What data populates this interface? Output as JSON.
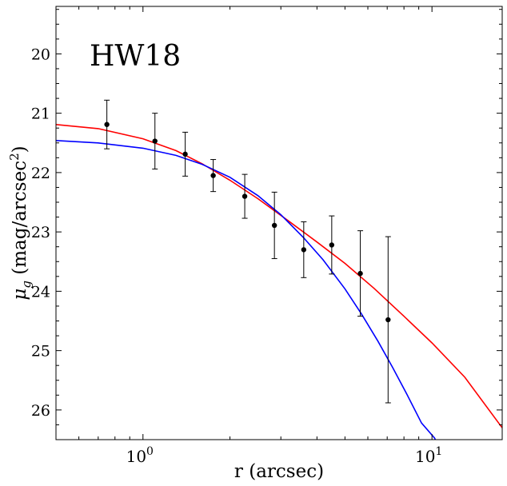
{
  "chart_data": {
    "type": "scatter",
    "title": "HW18",
    "xlabel": "r (arcsec)",
    "ylabel_main": "μ",
    "ylabel_sub": "g",
    "ylabel_unit_open": " (mag/arcsec",
    "ylabel_unit_sup": "2",
    "ylabel_unit_close": ")",
    "xscale": "log",
    "xlim": [
      0.5,
      17.5
    ],
    "ylim": [
      26.5,
      19.2
    ],
    "y_inverted": true,
    "grid": false,
    "x_major_ticks": [
      {
        "value": 1,
        "base": "10",
        "exp": "0"
      },
      {
        "value": 10,
        "base": "10",
        "exp": "1"
      }
    ],
    "x_minor_ticks": [
      0.5,
      0.6,
      0.7,
      0.8,
      0.9,
      2,
      3,
      4,
      5,
      6,
      7,
      8,
      9,
      20
    ],
    "y_major_ticks": [
      20,
      21,
      22,
      23,
      24,
      25,
      26
    ],
    "y_minor_ticks": [
      19.25,
      19.5,
      19.75,
      20.25,
      20.5,
      20.75,
      21.25,
      21.5,
      21.75,
      22.25,
      22.5,
      22.75,
      23.25,
      23.5,
      23.75,
      24.25,
      24.5,
      24.75,
      25.25,
      25.5,
      25.75,
      26.25
    ],
    "observations": {
      "color": "#000000",
      "points": [
        {
          "x": 0.75,
          "y": 21.19,
          "ylo": 21.6,
          "yhi": 20.78
        },
        {
          "x": 1.1,
          "y": 21.47,
          "ylo": 21.94,
          "yhi": 21.0
        },
        {
          "x": 1.4,
          "y": 21.69,
          "ylo": 22.06,
          "yhi": 21.32
        },
        {
          "x": 1.75,
          "y": 22.05,
          "ylo": 22.32,
          "yhi": 21.78
        },
        {
          "x": 2.25,
          "y": 22.4,
          "ylo": 22.77,
          "yhi": 22.03
        },
        {
          "x": 2.85,
          "y": 22.89,
          "ylo": 23.45,
          "yhi": 22.33
        },
        {
          "x": 3.6,
          "y": 23.3,
          "ylo": 23.77,
          "yhi": 22.83
        },
        {
          "x": 4.5,
          "y": 23.22,
          "ylo": 23.71,
          "yhi": 22.73
        },
        {
          "x": 5.65,
          "y": 23.7,
          "ylo": 24.42,
          "yhi": 22.98
        },
        {
          "x": 7.05,
          "y": 24.48,
          "ylo": 25.88,
          "yhi": 23.08
        }
      ]
    },
    "series": [
      {
        "color": "#ff0000",
        "x": [
          0.5,
          0.7,
          1.0,
          1.3,
          1.6,
          2.0,
          2.5,
          3.2,
          4.0,
          5.0,
          6.3,
          8.0,
          10.0,
          13.0,
          17.5
        ],
        "y": [
          21.19,
          21.26,
          21.43,
          21.63,
          21.85,
          22.13,
          22.44,
          22.82,
          23.17,
          23.53,
          23.95,
          24.42,
          24.87,
          25.45,
          26.3
        ]
      },
      {
        "color": "#0000ff",
        "x": [
          0.5,
          0.7,
          1.0,
          1.3,
          1.6,
          2.0,
          2.5,
          3.0,
          3.6,
          4.2,
          5.0,
          5.7,
          6.5,
          7.3,
          8.2,
          9.2,
          10.2,
          10.8
        ],
        "y": [
          21.46,
          21.5,
          21.59,
          21.71,
          21.86,
          22.08,
          22.39,
          22.71,
          23.1,
          23.47,
          23.96,
          24.38,
          24.84,
          25.28,
          25.74,
          26.22,
          26.47,
          26.7
        ]
      }
    ]
  }
}
